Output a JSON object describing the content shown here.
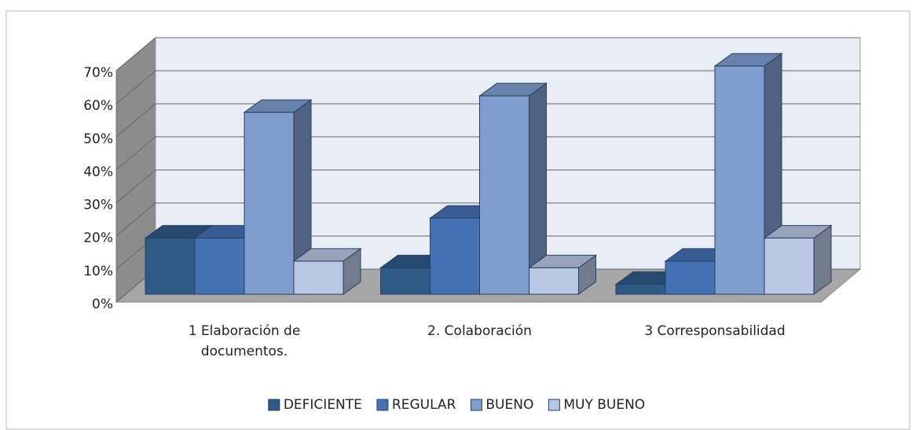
{
  "chart_data": {
    "type": "bar3d",
    "categories": [
      "1 Elaboración de documentos.",
      "2. Colaboración",
      "3 Corresponsabilidad"
    ],
    "series": [
      {
        "name": "DEFICIENTE",
        "color": "#2e5a87",
        "values": [
          17,
          8,
          3
        ]
      },
      {
        "name": "REGULAR",
        "color": "#4372b4",
        "values": [
          17,
          23,
          10
        ]
      },
      {
        "name": "BUENO",
        "color": "#7f9ed0",
        "values": [
          55,
          60,
          69
        ]
      },
      {
        "name": "MUY BUENO",
        "color": "#b8c7e4",
        "values": [
          10,
          8,
          17
        ]
      }
    ],
    "ylim": [
      0,
      70
    ],
    "yticks": [
      {
        "value": 0,
        "label": "0%"
      },
      {
        "value": 10,
        "label": "10%"
      },
      {
        "value": 20,
        "label": "20%"
      },
      {
        "value": 30,
        "label": "30%"
      },
      {
        "value": 40,
        "label": "40%"
      },
      {
        "value": 50,
        "label": "50%"
      },
      {
        "value": 60,
        "label": "60%"
      },
      {
        "value": 70,
        "label": "70%"
      }
    ],
    "grid": true,
    "legend": "bottom"
  }
}
